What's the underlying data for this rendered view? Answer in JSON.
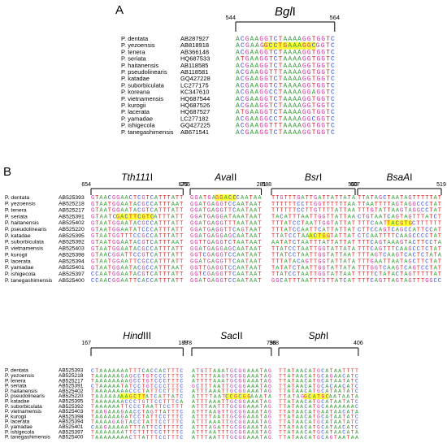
{
  "panel_a": {
    "label": "A",
    "rows": [
      {
        "species": "P. dentata",
        "accession": "AB287927"
      },
      {
        "species": "P. yezoensis",
        "accession": "AB818918"
      },
      {
        "species": "P. tenera",
        "accession": "AB366148"
      },
      {
        "species": "P. seriata",
        "accession": "HQ687533"
      },
      {
        "species": "P. haitanensis",
        "accession": "AB118585"
      },
      {
        "species": "P. pseudolinearis",
        "accession": "AB118581"
      },
      {
        "species": "P. katadae",
        "accession": "GQ427228"
      },
      {
        "species": "P. suborbiculata",
        "accession": "LC277175"
      },
      {
        "species": "P. koreana",
        "accession": "KC347610"
      },
      {
        "species": "P. vietnamensis",
        "accession": "HQ687544"
      },
      {
        "species": "P. kurogii",
        "accession": "HQ687526"
      },
      {
        "species": "P. lacerata",
        "accession": "HQ687527"
      },
      {
        "species": "P. yamadae",
        "accession": "LC277182"
      },
      {
        "species": "P. ishigecola",
        "accession": "GQ427225"
      },
      {
        "species": "P. tanegashimensis",
        "accession": "AB671541"
      }
    ],
    "block": {
      "name_italic": "Bgl",
      "name_roman": "I",
      "start": "544",
      "end": "564",
      "sequences": [
        "ACGAAGGTCTAAAAGGTGGTC",
        [
          "ACGAAG",
          {
            "text": "GCCTGAAAGGC",
            "highlight": "#ffff33"
          },
          "GGTC"
        ],
        "ACGAAGGTCTAAAAGGTGGTC",
        "ATGAAGGTCTAAAAGGTGGTC",
        "ACGAAGGTCTAAAAGGTGGTC",
        "ACGAAGGTTTAAAAGGTGGTC",
        "ACGAAGGTCTAAAAGGTGGTC",
        "ACGAAGGTCTAAAAGGTGGTC",
        "ACGAAGGCCTAAAAGGAGGTC",
        "ACGAAGGTCTAAAAGGTGGTC",
        "ACGAAGGTCTAAAAGGTGGTC",
        "ATGAAGGTCTAAAAGGTGGTC",
        "ACGAAGGCCTAAAAGGCGGTC",
        "ACGAAGGTTTAAAAGGTGGTC",
        "ACGAAGGTCTAAAAGGTGGTC"
      ]
    }
  },
  "panel_b": {
    "label": "B",
    "top": {
      "rows": [
        {
          "species": "P. dentata",
          "accession": "AB525393"
        },
        {
          "species": "P. yezoensis",
          "accession": "AB525218"
        },
        {
          "species": "P. tenera",
          "accession": "AB525217"
        },
        {
          "species": "P. seriata",
          "accession": "AB525391"
        },
        {
          "species": "P. haitanensis",
          "accession": "AB525402"
        },
        {
          "species": "P. pseudolinearis",
          "accession": "AB525220"
        },
        {
          "species": "P. katadae",
          "accession": "AB525395"
        },
        {
          "species": "P. suborbiculata",
          "accession": "AB525392"
        },
        {
          "species": "P. vietnamensis",
          "accession": "AB525403"
        },
        {
          "species": "P. kurogii",
          "accession": "AB525398"
        },
        {
          "species": "P. lacerata",
          "accession": "AB525394"
        },
        {
          "species": "P. yamadae",
          "accession": "AB525401"
        },
        {
          "species": "P. ishigecola",
          "accession": "AB525397"
        },
        {
          "species": "P. tanegashimensis",
          "accession": "AB525400"
        }
      ],
      "blocks": [
        {
          "name_italic": "Tth111",
          "name_roman": "I",
          "start": "654",
          "end": "675",
          "sequences": [
            "GTAACGGAACTCGTCATTTATT",
            "GTAATGGAATACGCCATTTAAT",
            "GTAATGGAATACGTCATTTATT",
            [
              "GTAATC",
              {
                "text": "GACTTCGTC",
                "highlight": "#ffff33"
              },
              "ATTTATT"
            ],
            "GTAATGGAATACGCCATTTATT",
            "GTAATGGAATATCCCATTTATT",
            "GTAATGGTTTCCGCCATTTATT",
            "GTAATGGAATACGTCATTTAAT",
            "GTAATGGAATACGCCATTTATT",
            "GTAACGGATTCCGTCATTTATT",
            "GTAATGGAATTCGCCATTTATT",
            "GTAATGGAATACGCCATTTAAT",
            "CCAATGGAATACGTCATTTATT",
            "CCAACGGAATTCACCATTTATT"
          ]
        },
        {
          "name_italic": "Ava",
          "name_roman": "II",
          "start": "265",
          "end": "281",
          "sequences": [
            [
              "GGATGA",
              {
                "text": "GGACC",
                "highlight": "#ffff33"
              },
              "CAATAA"
            ],
            "GGATGAGGTCCAATAAT",
            "GGATGAGGTTCAATAAT",
            "GGATGAGGATAAATAAT",
            "GGATGAGGTTTAATAAT",
            "GGATGAGGTTCAGTAAT",
            "GGATGAGGAGCAATAAT",
            "GGTTGAGGTCTAATAAT",
            "GGATGAGGAGCAATAAT",
            "GGTCGAGGTCCAATAAT",
            "GGATGAGGTTCAATAAT",
            "GGTTGAGGTCCAATAAT",
            "GGTCGAGGTTCAATAAT",
            "GGATGAGGTCCAATAAT"
          ]
        },
        {
          "name_italic": "Bsr",
          "name_roman": "I",
          "start": "588",
          "end": "607",
          "sequences": [
            "TTGTTTGATTGATTATTATA",
            "TTTTTTCCTTGGTTTTTTAA",
            "TTTTTTCCTTGTTTTATTAA",
            "TACATTTAATTGGTTATTAA",
            "TTTATCCTAATTGGTATTAT",
            "TTTATCCAATTCATTATTAT",
            [
              "TTATCCTAA",
              {
                "text": "ACTGG",
                "highlight": "#ffff33"
              },
              "TATTAT"
            ],
            "AATATCTAATTTATTATTAT",
            "TTATCCTAATTGGTATTATA",
            "TTATCCTAATTGGTATTAAT",
            "TTTATACAGTTGGTATTATA",
            "TATATCTAATTGGTATTATA",
            "TTATCCTAATTGGTATTAAT",
            "GGCATTTAATTTGTTATCAT"
          ]
        },
        {
          "name_italic": "BsaA",
          "name_roman": "I",
          "start": "500",
          "end": "519",
          "sequences": [
            "TTATAGCTAATAGTTTTTAT",
            "TTAATTTTAGTAGGCCCTAT",
            "TTTGTATTAAGTAGGCCTAT",
            "CTGTAATCAGTAGTTTATCT",
            [
              "TTTCAAT",
              {
                "text": "TACGTG",
                "highlight": "#ffff33"
              },
              "CTTTTTT"
            ],
            "CTTCCAGTCAGCCATTCCAT",
            "CTCAATTTTCAAGCCCCTAT",
            "TTTCAGTAAAGTACTTCCTA",
            "TTTCAGTTTCAAGCCTCTAT",
            "TTTAGTCAAGTCACTCTATA",
            "TTTGAATTAATAGCTTCTAT",
            "TTTGGTCAAGTCAGTCCTAT",
            "TTTTCTATACTAGTTTTTAT",
            "TTTCAGTTAGTAGTTTGGCC"
          ]
        }
      ]
    },
    "bottom": {
      "rows": [
        {
          "species": "P. dentata",
          "accession": "AB525393"
        },
        {
          "species": "P. yezoensis",
          "accession": "AB525218"
        },
        {
          "species": "P. tenera",
          "accession": "AB525217"
        },
        {
          "species": "P. seriata",
          "accession": "AB525391"
        },
        {
          "species": "P. haitanensis",
          "accession": "AB525402"
        },
        {
          "species": "P. pseudolinearis",
          "accession": "AB525220"
        },
        {
          "species": "P. katadae",
          "accession": "AB525395"
        },
        {
          "species": "P. suborbiculata",
          "accession": "AB525392"
        },
        {
          "species": "P. vietnamensis",
          "accession": "AB525403"
        },
        {
          "species": "P. kurogii",
          "accession": "AB525398"
        },
        {
          "species": "P. lacerata",
          "accession": "AB525394"
        },
        {
          "species": "P. yamadae",
          "accession": "AB525401"
        },
        {
          "species": "P. ishigecola",
          "accession": "AB525397"
        },
        {
          "species": "P. tanegashimensis",
          "accession": "AB525400"
        }
      ],
      "blocks": [
        {
          "name_italic": "Hind",
          "name_roman": "III",
          "start": "167",
          "end": "188",
          "sequences": [
            "CTAAAAAAATTTCACCACTTTC",
            "TAAAAAAGAGCCTGTCCCTTTC",
            "TAAAAAAAAGCCTGTCCCTTTC",
            "CTAAAAATATCCTGTCCCTTTC",
            "TAAAAAAAACCCTATTCCTTTC",
            [
              "TAAAAAA",
              {
                "text": "AAGCTT",
                "highlight": "#ffff33"
              },
              "ATCATTATC"
            ],
            "TAAAAAAACCCTGTTCCTTTCA",
            "TAAAAAATTCCCTAATTCCTTT",
            "TAAGAAAGAACCTAGTTATTTC",
            "TAAAAAAGATCCTATTCCTTTC",
            "TAAAAGAGTACCTATTCCTTTC",
            "CAAGAAAAATTTATTCCTTTTC",
            "TAAAAAAATTCTTTTCCTTTTC",
            "TAAAAAAAACTTATTTCCTTTC"
          ]
        },
        {
          "name_italic": "Sac",
          "name_roman": "II",
          "start": "778",
          "end": "796",
          "sequences": [
            "ATGTTAAATGCGGAAATAG",
            "ATTTTAAGTGCGGAAATAG",
            "ATTTTAAATGCGGAAATAG",
            "GCTTTAATTGCGGAAATAG",
            "ATTTAAATTGCGGAAATAG",
            [
              "ATTTTAAT",
              {
                "text": "CCGCGG",
                "highlight": "#ffff33"
              },
              "AAATA"
            ],
            "ATTTAAATTGCGGAAATAG",
            "ATTTAATTTGCGGAAATAG",
            "ATTTAAGTTGCGGAAATAG",
            "ATTTTAATTGCGGAAATAG",
            "ATTTAAATTGCGGAAATAG",
            "ATTTAGATTGCGGAAATAG",
            "ATTTAATTTGCGGAAATAG",
            "ATTTAATTTGCGGAAATAG"
          ]
        },
        {
          "name_italic": "Sph",
          "name_roman": "I",
          "start": "388",
          "end": "406",
          "sequences": [
            "TTATAACATGCATAATTTT",
            "TTATAACATGCAGAACATC",
            "TTATAACATGCATAATATC",
            "TTATAACATGCACAACATC",
            "TTATAACATGCATAATATC",
            [
              "TTATAG",
              {
                "text": "GCATGC",
                "highlight": "#ffff33"
              },
              "AATAATA"
            ],
            "TTATAACATGCATAATATC",
            "TTATAACATGCAAAAAAAC",
            "TTATAACATGAATAACATA",
            "TTATAACATGCATAATATC",
            "TTATAACATGCATAATATC",
            "TTATAACATGCATAACATC",
            "TTATAACATGCATAACATA",
            "TTATAACATGCAGTAATAA"
          ]
        }
      ]
    }
  }
}
